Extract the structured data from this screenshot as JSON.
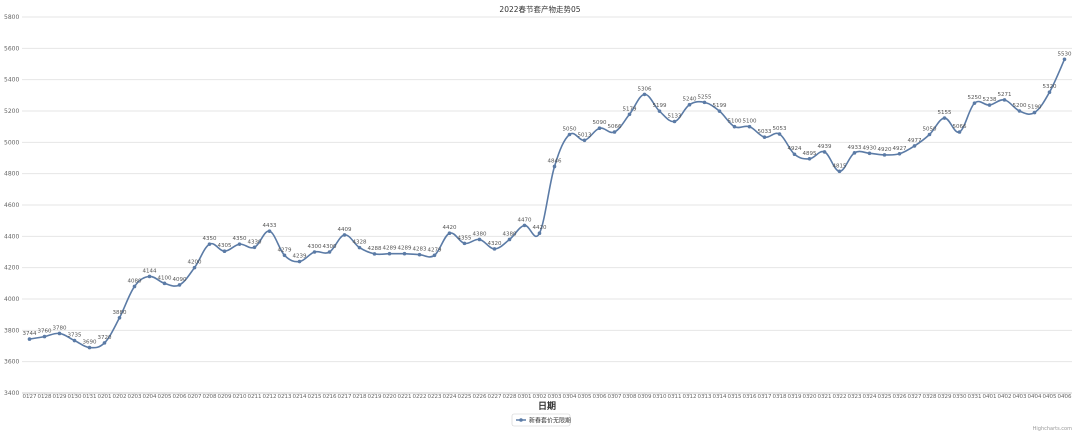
{
  "chart_data": {
    "type": "line",
    "title": "2022春节套产物走势05",
    "xlabel": "日期",
    "ylabel": "",
    "ylim": [
      3400,
      5800
    ],
    "yticks": [
      3400,
      3600,
      3800,
      4000,
      4200,
      4400,
      4600,
      4800,
      5000,
      5200,
      5400,
      5600,
      5800
    ],
    "grid": true,
    "legend_position": "bottom-center",
    "credit": "Highcharts.com",
    "colors": {
      "series": "#5b7ba6",
      "grid": "#e6e6e6"
    },
    "categories": [
      "0127",
      "0128",
      "0129",
      "0130",
      "0131",
      "0201",
      "0202",
      "0203",
      "0204",
      "0205",
      "0206",
      "0207",
      "0208",
      "0209",
      "0210",
      "0211",
      "0212",
      "0213",
      "0214",
      "0215",
      "0216",
      "0217",
      "0218",
      "0219",
      "0220",
      "0221",
      "0222",
      "0223",
      "0224",
      "0225",
      "0226",
      "0227",
      "0228",
      "0301",
      "0302",
      "0303",
      "0304",
      "0305",
      "0306",
      "0307",
      "0308",
      "0309",
      "0310",
      "0311",
      "0312",
      "0313",
      "0314",
      "0315",
      "0316",
      "0317",
      "0318",
      "0319",
      "0320",
      "0321",
      "0322",
      "0323",
      "0324",
      "0325",
      "0326",
      "0327",
      "0328",
      "0329",
      "0330",
      "0331",
      "0401",
      "0402",
      "0403",
      "0404",
      "0405",
      "0406"
    ],
    "series": [
      {
        "name": "新春套价无限期",
        "values": [
          3744,
          3760,
          3780,
          3735,
          3690,
          3720,
          3880,
          4080,
          4144,
          4100,
          4090,
          4200,
          4350,
          4305,
          4350,
          4330,
          4433,
          4279,
          4239,
          4300,
          4300,
          4409,
          4328,
          4288,
          4289,
          4289,
          4283,
          4279,
          4420,
          4355,
          4380,
          4320,
          4380,
          4470,
          4420,
          4846,
          5050,
          5013,
          5090,
          5066,
          5179,
          5306,
          5199,
          5133,
          5240,
          5255,
          5199,
          5100,
          5100,
          5033,
          5053,
          4924,
          4895,
          4939,
          4815,
          4933,
          4930,
          4920,
          4927,
          4977,
          5050,
          5155,
          5066,
          5250,
          5238,
          5271,
          5200,
          5190,
          5320,
          5530
        ]
      }
    ]
  }
}
